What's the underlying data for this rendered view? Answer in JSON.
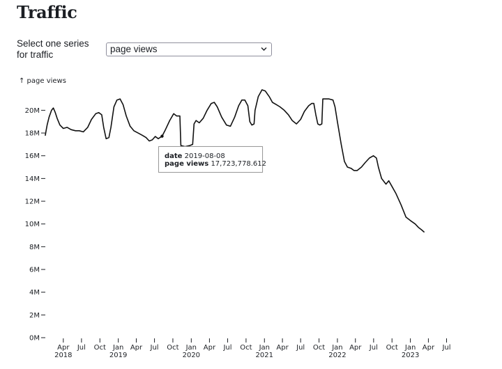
{
  "page": {
    "title": "Traffic",
    "select_label": "Select one series for traffic"
  },
  "series_select": {
    "value": "page views"
  },
  "tooltip": {
    "date_label": "date",
    "date_value": "2019-08-08",
    "views_label": "page views",
    "views_value": "17,723,778.612"
  },
  "colors": {
    "line": "#111111",
    "text": "#1b1e23",
    "axis": "#1b1e23"
  },
  "chart_data": {
    "type": "line",
    "title": "",
    "ylabel": "↑ page views",
    "xlabel": "",
    "grid": false,
    "legend": "none",
    "ylim": [
      0,
      21800000
    ],
    "xlim": [
      "2018-01-01",
      "2023-08-31"
    ],
    "y_ticks": [
      {
        "value": 0,
        "label": "0M"
      },
      {
        "value": 2000000,
        "label": "2M"
      },
      {
        "value": 4000000,
        "label": "4M"
      },
      {
        "value": 6000000,
        "label": "6M"
      },
      {
        "value": 8000000,
        "label": "8M"
      },
      {
        "value": 10000000,
        "label": "10M"
      },
      {
        "value": 12000000,
        "label": "12M"
      },
      {
        "value": 14000000,
        "label": "14M"
      },
      {
        "value": 16000000,
        "label": "16M"
      },
      {
        "value": 18000000,
        "label": "18M"
      },
      {
        "value": 20000000,
        "label": "20M"
      }
    ],
    "x_ticks": [
      {
        "date": "2018-04-01",
        "label": "Apr",
        "year": "2018"
      },
      {
        "date": "2018-07-01",
        "label": "Jul",
        "year": ""
      },
      {
        "date": "2018-10-01",
        "label": "Oct",
        "year": ""
      },
      {
        "date": "2019-01-01",
        "label": "Jan",
        "year": "2019"
      },
      {
        "date": "2019-04-01",
        "label": "Apr",
        "year": ""
      },
      {
        "date": "2019-07-01",
        "label": "Jul",
        "year": ""
      },
      {
        "date": "2019-10-01",
        "label": "Oct",
        "year": ""
      },
      {
        "date": "2020-01-01",
        "label": "Jan",
        "year": "2020"
      },
      {
        "date": "2020-04-01",
        "label": "Apr",
        "year": ""
      },
      {
        "date": "2020-07-01",
        "label": "Jul",
        "year": ""
      },
      {
        "date": "2020-10-01",
        "label": "Oct",
        "year": ""
      },
      {
        "date": "2021-01-01",
        "label": "Jan",
        "year": "2021"
      },
      {
        "date": "2021-04-01",
        "label": "Apr",
        "year": ""
      },
      {
        "date": "2021-07-01",
        "label": "Jul",
        "year": ""
      },
      {
        "date": "2021-10-01",
        "label": "Oct",
        "year": ""
      },
      {
        "date": "2022-01-01",
        "label": "Jan",
        "year": "2022"
      },
      {
        "date": "2022-04-01",
        "label": "Apr",
        "year": ""
      },
      {
        "date": "2022-07-01",
        "label": "Jul",
        "year": ""
      },
      {
        "date": "2022-10-01",
        "label": "Oct",
        "year": ""
      },
      {
        "date": "2023-01-01",
        "label": "Jan",
        "year": "2023"
      },
      {
        "date": "2023-04-01",
        "label": "Apr",
        "year": ""
      },
      {
        "date": "2023-07-01",
        "label": "Jul",
        "year": ""
      }
    ],
    "series": [
      {
        "values": [
          [
            "2018-01-01",
            17800000
          ],
          [
            "2018-01-05",
            18200000
          ],
          [
            "2018-01-10",
            18700000
          ],
          [
            "2018-01-20",
            19400000
          ],
          [
            "2018-02-01",
            20000000
          ],
          [
            "2018-02-10",
            20200000
          ],
          [
            "2018-02-20",
            19800000
          ],
          [
            "2018-03-01",
            19300000
          ],
          [
            "2018-03-15",
            18700000
          ],
          [
            "2018-04-01",
            18400000
          ],
          [
            "2018-04-20",
            18500000
          ],
          [
            "2018-05-10",
            18300000
          ],
          [
            "2018-06-01",
            18200000
          ],
          [
            "2018-06-20",
            18200000
          ],
          [
            "2018-07-10",
            18100000
          ],
          [
            "2018-08-01",
            18500000
          ],
          [
            "2018-08-20",
            19200000
          ],
          [
            "2018-09-10",
            19700000
          ],
          [
            "2018-09-25",
            19800000
          ],
          [
            "2018-10-10",
            19600000
          ],
          [
            "2018-10-20",
            18500000
          ],
          [
            "2018-11-01",
            17500000
          ],
          [
            "2018-11-15",
            17600000
          ],
          [
            "2018-11-25",
            18500000
          ],
          [
            "2018-12-10",
            20300000
          ],
          [
            "2018-12-25",
            20900000
          ],
          [
            "2019-01-10",
            21000000
          ],
          [
            "2019-01-25",
            20500000
          ],
          [
            "2019-02-10",
            19500000
          ],
          [
            "2019-03-01",
            18600000
          ],
          [
            "2019-03-20",
            18200000
          ],
          [
            "2019-04-10",
            18000000
          ],
          [
            "2019-05-01",
            17800000
          ],
          [
            "2019-05-20",
            17600000
          ],
          [
            "2019-06-05",
            17300000
          ],
          [
            "2019-06-20",
            17400000
          ],
          [
            "2019-07-05",
            17700000
          ],
          [
            "2019-07-20",
            17500000
          ],
          [
            "2019-08-08",
            17720000
          ],
          [
            "2019-08-25",
            18300000
          ],
          [
            "2019-09-15",
            19100000
          ],
          [
            "2019-10-05",
            19700000
          ],
          [
            "2019-10-20",
            19500000
          ],
          [
            "2019-11-05",
            19500000
          ],
          [
            "2019-11-10",
            16900000
          ],
          [
            "2019-12-01",
            16800000
          ],
          [
            "2019-12-25",
            16900000
          ],
          [
            "2020-01-08",
            17000000
          ],
          [
            "2020-01-15",
            18800000
          ],
          [
            "2020-01-25",
            19100000
          ],
          [
            "2020-02-10",
            18900000
          ],
          [
            "2020-03-01",
            19300000
          ],
          [
            "2020-03-20",
            20000000
          ],
          [
            "2020-04-10",
            20600000
          ],
          [
            "2020-04-25",
            20700000
          ],
          [
            "2020-05-10",
            20300000
          ],
          [
            "2020-06-01",
            19400000
          ],
          [
            "2020-06-25",
            18700000
          ],
          [
            "2020-07-15",
            18600000
          ],
          [
            "2020-08-05",
            19400000
          ],
          [
            "2020-08-25",
            20400000
          ],
          [
            "2020-09-10",
            20900000
          ],
          [
            "2020-09-25",
            20900000
          ],
          [
            "2020-10-10",
            20400000
          ],
          [
            "2020-10-20",
            19000000
          ],
          [
            "2020-10-30",
            18700000
          ],
          [
            "2020-11-10",
            18800000
          ],
          [
            "2020-11-15",
            20000000
          ],
          [
            "2020-12-01",
            21200000
          ],
          [
            "2020-12-20",
            21800000
          ],
          [
            "2021-01-05",
            21700000
          ],
          [
            "2021-01-25",
            21200000
          ],
          [
            "2021-02-10",
            20700000
          ],
          [
            "2021-03-01",
            20500000
          ],
          [
            "2021-03-20",
            20300000
          ],
          [
            "2021-04-10",
            20000000
          ],
          [
            "2021-05-01",
            19600000
          ],
          [
            "2021-05-20",
            19100000
          ],
          [
            "2021-06-10",
            18800000
          ],
          [
            "2021-07-01",
            19200000
          ],
          [
            "2021-07-20",
            19900000
          ],
          [
            "2021-08-10",
            20400000
          ],
          [
            "2021-08-25",
            20600000
          ],
          [
            "2021-09-05",
            20600000
          ],
          [
            "2021-09-15",
            19600000
          ],
          [
            "2021-09-25",
            18800000
          ],
          [
            "2021-10-05",
            18700000
          ],
          [
            "2021-10-15",
            18800000
          ],
          [
            "2021-10-20",
            21000000
          ],
          [
            "2021-11-20",
            21000000
          ],
          [
            "2021-12-10",
            20900000
          ],
          [
            "2021-12-20",
            20300000
          ],
          [
            "2022-01-01",
            19000000
          ],
          [
            "2022-01-20",
            17000000
          ],
          [
            "2022-02-05",
            15500000
          ],
          [
            "2022-02-20",
            15000000
          ],
          [
            "2022-03-10",
            14900000
          ],
          [
            "2022-03-25",
            14700000
          ],
          [
            "2022-04-10",
            14700000
          ],
          [
            "2022-05-01",
            15000000
          ],
          [
            "2022-05-20",
            15400000
          ],
          [
            "2022-06-10",
            15800000
          ],
          [
            "2022-06-30",
            16000000
          ],
          [
            "2022-07-15",
            15800000
          ],
          [
            "2022-07-25",
            15000000
          ],
          [
            "2022-08-10",
            14000000
          ],
          [
            "2022-09-01",
            13500000
          ],
          [
            "2022-09-15",
            13800000
          ],
          [
            "2022-10-01",
            13300000
          ],
          [
            "2022-10-20",
            12700000
          ],
          [
            "2022-11-15",
            11700000
          ],
          [
            "2022-12-10",
            10600000
          ],
          [
            "2023-01-01",
            10300000
          ],
          [
            "2023-01-25",
            10000000
          ],
          [
            "2023-02-10",
            9700000
          ],
          [
            "2023-02-25",
            9500000
          ],
          [
            "2023-03-10",
            9300000
          ]
        ]
      }
    ]
  }
}
